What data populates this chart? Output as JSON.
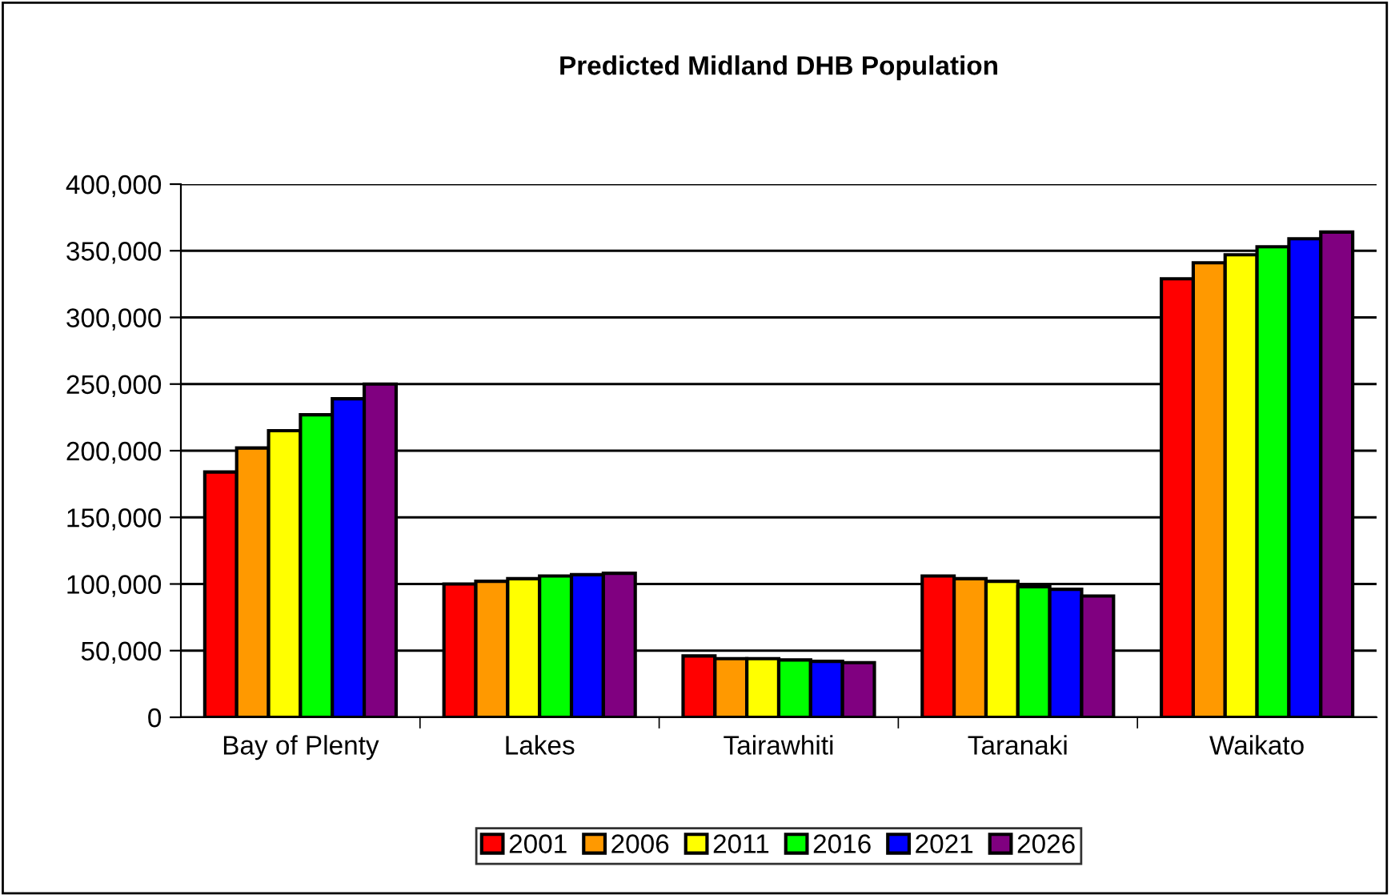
{
  "chart_data": {
    "type": "bar",
    "title": "Predicted Midland DHB Population",
    "categories": [
      "Bay of Plenty",
      "Lakes",
      "Tairawhiti",
      "Taranaki",
      "Waikato"
    ],
    "series": [
      {
        "name": "2001",
        "color": "#ff0000",
        "values": [
          184000,
          100000,
          46000,
          106000,
          329000
        ]
      },
      {
        "name": "2006",
        "color": "#ff9900",
        "values": [
          202000,
          102000,
          44000,
          104000,
          341000
        ]
      },
      {
        "name": "2011",
        "color": "#ffff00",
        "values": [
          215000,
          104000,
          44000,
          102000,
          347000
        ]
      },
      {
        "name": "2016",
        "color": "#00ff00",
        "values": [
          227000,
          106000,
          43000,
          98000,
          353000
        ]
      },
      {
        "name": "2021",
        "color": "#0000ff",
        "values": [
          239000,
          107000,
          42000,
          96000,
          359000
        ]
      },
      {
        "name": "2026",
        "color": "#800080",
        "values": [
          250000,
          108000,
          41000,
          91000,
          364000
        ]
      }
    ],
    "ylim": [
      0,
      400000
    ],
    "yticks": [
      {
        "value": 0,
        "label": "0"
      },
      {
        "value": 50000,
        "label": "50,000"
      },
      {
        "value": 100000,
        "label": "100,000"
      },
      {
        "value": 150000,
        "label": "150,000"
      },
      {
        "value": 200000,
        "label": "200,000"
      },
      {
        "value": 250000,
        "label": "250,000"
      },
      {
        "value": 300000,
        "label": "300,000"
      },
      {
        "value": 350000,
        "label": "350,000"
      },
      {
        "value": 400000,
        "label": "400,000"
      }
    ],
    "grid": "y",
    "legend": "bottom"
  }
}
